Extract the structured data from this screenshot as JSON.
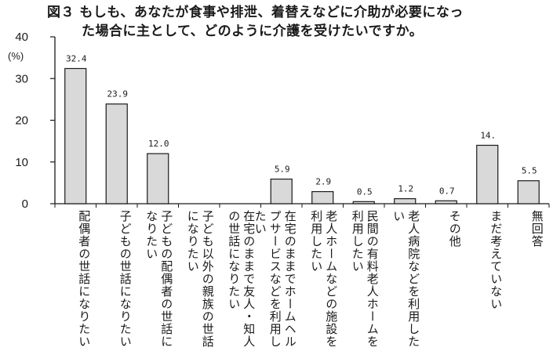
{
  "title": {
    "line1": "図３ もしも、あなたが食事や排泄、着替えなどに介助が必要になっ",
    "line2": "た場合に主として、どのように介護を受けたいですか。"
  },
  "chart_data": {
    "type": "bar",
    "title": "図３ もしも、あなたが食事や排泄、着替えなどに介助が必要になった場合に主として、どのように介護を受けたいですか。",
    "ylabel": "(%)",
    "ylim": [
      0,
      40
    ],
    "yticks": [
      0,
      10,
      20,
      30,
      40
    ],
    "grid": false,
    "categories": [
      "配偶者の世話になりたい",
      "子どもの世話になりたい",
      "子どもの配偶者の世話になりたい",
      "子ども以外の親族の世話になりたい",
      "在宅のままで友人・知人の世話になりたい",
      "在宅のままでホームヘルプサービスなどを利用したい",
      "老人ホームなどの施設を利用したい",
      "民間の有料老人ホームを利用したい",
      "老人病院などを利用したい",
      "その他",
      "まだ考えていない",
      "無回答"
    ],
    "values": [
      32.4,
      23.9,
      12.0,
      null,
      null,
      5.9,
      2.9,
      0.5,
      1.2,
      0.7,
      14.0,
      5.5
    ],
    "value_labels": [
      "32.4",
      "23.9",
      "12.0",
      "",
      "",
      "5.9",
      "2.9",
      "0.5",
      "1.2",
      "0.7",
      "14.",
      "5.5"
    ],
    "bar_color": "#d9d9d9",
    "bar_stroke": "#1a1a1a"
  }
}
